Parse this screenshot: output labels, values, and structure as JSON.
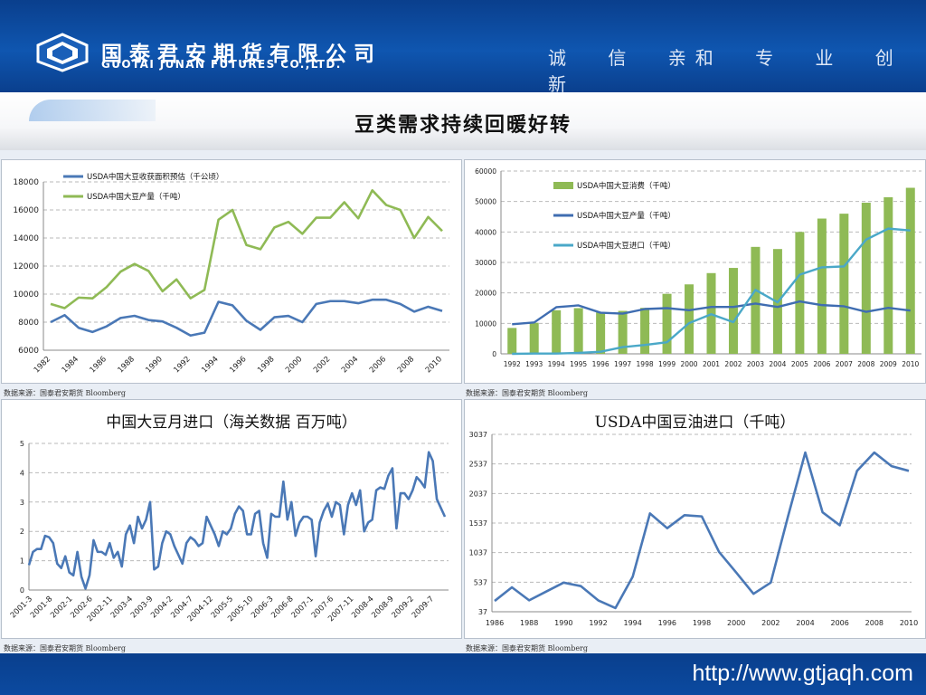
{
  "header": {
    "company_cn": "国泰君安期货有限公司",
    "company_en": "GUOTAI JUNAN FUTURES CO.,LTD.",
    "slogan": "诚 信  亲和  专 业  创 新",
    "brand_color": "#0b4aa0",
    "logo_icon": "hexagon-logo-icon"
  },
  "page_title": "豆类需求持续回暖好转",
  "footer": {
    "url": "http://www.gtjaqh.com"
  },
  "source_note": "数据来源：国泰君安期货 Bloomberg",
  "chart_data": [
    {
      "type": "line",
      "title": "",
      "x": [
        1982,
        1983,
        1984,
        1985,
        1986,
        1987,
        1988,
        1989,
        1990,
        1991,
        1992,
        1993,
        1994,
        1995,
        1996,
        1997,
        1998,
        1999,
        2000,
        2001,
        2002,
        2003,
        2004,
        2005,
        2006,
        2007,
        2008,
        2009,
        2010
      ],
      "x_tick_labels": [
        "1982",
        "1984",
        "1986",
        "1988",
        "1990",
        "1992",
        "1994",
        "1996",
        "1998",
        "2000",
        "2002",
        "2004",
        "2006",
        "2008",
        "2010"
      ],
      "ylim": [
        6000,
        18000
      ],
      "yticks": [
        6000,
        8000,
        10000,
        12000,
        14000,
        16000,
        18000
      ],
      "grid": true,
      "legend": "top-left",
      "series": [
        {
          "name": "USDA中国大豆收获面积预估（千公顷）",
          "color": "#4a78b6",
          "values": [
            8000,
            8500,
            7600,
            7300,
            7700,
            8300,
            8450,
            8150,
            8050,
            7600,
            7050,
            7250,
            9450,
            9200,
            8100,
            7450,
            8350,
            8450,
            8000,
            9300,
            9500,
            9500,
            9350,
            9600,
            9600,
            9300,
            8750,
            9100,
            8800
          ]
        },
        {
          "name": "USDA中国大豆产量（千吨）",
          "color": "#8fba55",
          "values": [
            9300,
            9000,
            9750,
            9700,
            10500,
            11600,
            12150,
            11650,
            10200,
            11050,
            9700,
            10300,
            15300,
            16000,
            13500,
            13200,
            14750,
            15150,
            14300,
            15450,
            15450,
            16550,
            15400,
            17400,
            16350,
            16000,
            14000,
            15500,
            14500
          ]
        }
      ]
    },
    {
      "type": "bar",
      "title": "",
      "categories": [
        "1992",
        "1993",
        "1994",
        "1995",
        "1996",
        "1997",
        "1998",
        "1999",
        "2000",
        "2001",
        "2002",
        "2003",
        "2004",
        "2005",
        "2006",
        "2007",
        "2008",
        "2009",
        "2010"
      ],
      "ylim": [
        0,
        60000
      ],
      "yticks": [
        0,
        10000,
        20000,
        30000,
        40000,
        50000,
        60000
      ],
      "grid": true,
      "legend": "top-left",
      "series": [
        {
          "name": "USDA中国大豆消费（千吨）",
          "type": "bar",
          "color": "#8fba55",
          "values": [
            8500,
            10200,
            14300,
            15000,
            13600,
            14100,
            15100,
            19700,
            22800,
            26500,
            28200,
            35100,
            34400,
            40000,
            44400,
            46000,
            49600,
            51400,
            54500
          ]
        },
        {
          "name": "USDA中国大豆产量（千吨）",
          "type": "line",
          "color": "#3f6db1",
          "values": [
            9700,
            10300,
            15300,
            15900,
            13500,
            13200,
            14700,
            15000,
            14300,
            15400,
            15400,
            16500,
            15400,
            17200,
            16000,
            15600,
            13800,
            15100,
            14200
          ]
        },
        {
          "name": "USDA中国大豆进口（千吨）",
          "type": "line",
          "color": "#4aa8c8",
          "values": [
            0,
            100,
            100,
            300,
            700,
            2200,
            2900,
            3800,
            10100,
            13000,
            10400,
            21000,
            16900,
            26000,
            28400,
            28700,
            37500,
            41100,
            40500
          ]
        }
      ]
    },
    {
      "type": "line",
      "title": "中国大豆月进口（海关数据 百万吨）",
      "x_tick_labels": [
        "2001-3",
        "2001-8",
        "2002-1",
        "2002-6",
        "2002-11",
        "2003-4",
        "2003-9",
        "2004-2",
        "2004-7",
        "2004-12",
        "2005-5",
        "2005-10",
        "2006-3",
        "2006-8",
        "2007-1",
        "2007-6",
        "2007-11",
        "2008-4",
        "2008-9",
        "2009-2",
        "2009-7"
      ],
      "ylim": [
        0,
        5
      ],
      "yticks": [
        0,
        1,
        2,
        3,
        4,
        5
      ],
      "grid": true,
      "series": [
        {
          "name": "",
          "color": "#4a78b6",
          "values": [
            0.85,
            1.3,
            1.4,
            1.4,
            1.85,
            1.8,
            1.6,
            0.9,
            0.75,
            1.15,
            0.6,
            0.5,
            1.3,
            0.45,
            0.05,
            0.5,
            1.7,
            1.3,
            1.3,
            1.2,
            1.6,
            1.1,
            1.3,
            0.8,
            1.9,
            2.2,
            1.6,
            2.5,
            2.1,
            2.4,
            3.0,
            0.7,
            0.8,
            1.6,
            2.0,
            1.9,
            1.5,
            1.2,
            0.9,
            1.6,
            1.8,
            1.7,
            1.5,
            1.6,
            2.5,
            2.2,
            1.9,
            1.5,
            2.0,
            1.9,
            2.1,
            2.6,
            2.85,
            2.7,
            1.9,
            1.9,
            2.6,
            2.7,
            1.6,
            1.1,
            2.6,
            2.5,
            2.5,
            3.7,
            2.4,
            3.0,
            1.85,
            2.3,
            2.5,
            2.5,
            2.4,
            1.15,
            2.3,
            2.7,
            2.95,
            2.5,
            3.0,
            2.9,
            1.9,
            2.9,
            3.3,
            2.9,
            3.4,
            2.0,
            2.3,
            2.4,
            3.4,
            3.5,
            3.45,
            3.9,
            4.15,
            2.1,
            3.3,
            3.3,
            3.1,
            3.4,
            3.85,
            3.7,
            3.5,
            4.7,
            4.4,
            3.1,
            2.8,
            2.5
          ]
        }
      ]
    },
    {
      "type": "line",
      "title": "USDA中国豆油进口（千吨）",
      "x": [
        1986,
        1987,
        1988,
        1989,
        1990,
        1991,
        1992,
        1993,
        1994,
        1995,
        1996,
        1997,
        1998,
        1999,
        2000,
        2001,
        2002,
        2003,
        2004,
        2005,
        2006,
        2007,
        2008,
        2009,
        2010
      ],
      "x_tick_labels": [
        "1986",
        "1988",
        "1990",
        "1992",
        "1994",
        "1996",
        "1998",
        "2000",
        "2002",
        "2004",
        "2006",
        "2008",
        "2010"
      ],
      "ylim": [
        37,
        3037
      ],
      "yticks": [
        37,
        537,
        1037,
        1537,
        2037,
        2537,
        3037
      ],
      "grid": true,
      "series": [
        {
          "name": "",
          "color": "#4a78b6",
          "values": [
            220,
            450,
            230,
            380,
            530,
            470,
            230,
            100,
            630,
            1700,
            1450,
            1670,
            1650,
            1050,
            700,
            340,
            530,
            1650,
            2730,
            1720,
            1500,
            2420,
            2730,
            2500,
            2420
          ]
        }
      ]
    }
  ]
}
